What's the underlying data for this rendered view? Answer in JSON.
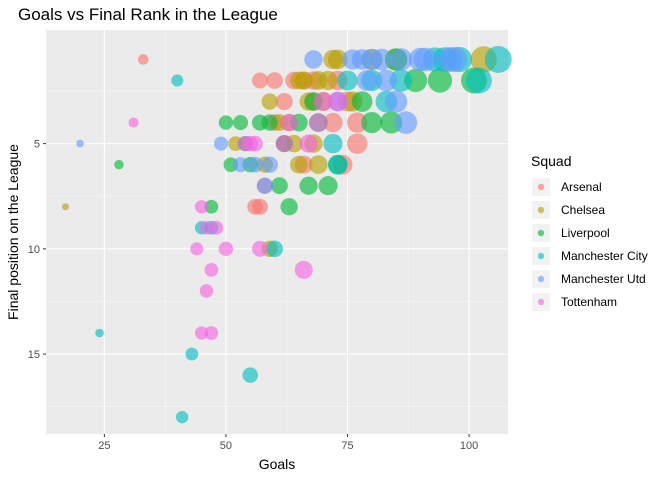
{
  "chart_data": {
    "type": "scatter",
    "title": "Goals vs Final Rank in the League",
    "xlabel": "Goals",
    "ylabel": "Final position on the League",
    "xlim": [
      13,
      108
    ],
    "ylim": [
      18.8,
      -0.4
    ],
    "y_reversed": true,
    "grid": true,
    "x_ticks": [
      25,
      50,
      75,
      100
    ],
    "y_ticks": [
      5,
      10,
      15
    ],
    "legend_position": "right",
    "legend_title": "Squad",
    "size_encodes": "x",
    "series": [
      {
        "name": "Arsenal",
        "color": "#F8766D",
        "points": [
          [
            33,
            1
          ],
          [
            57,
            2
          ],
          [
            60,
            2
          ],
          [
            62,
            3
          ],
          [
            64,
            2
          ],
          [
            66,
            2
          ],
          [
            68,
            3
          ],
          [
            73,
            2
          ],
          [
            75,
            3
          ],
          [
            77,
            4
          ],
          [
            72,
            4
          ],
          [
            77,
            5
          ],
          [
            74,
            6
          ],
          [
            62,
            5
          ],
          [
            58,
            7
          ],
          [
            56,
            8
          ],
          [
            57,
            8
          ],
          [
            66,
            6
          ],
          [
            60,
            4
          ],
          [
            68,
            2
          ]
        ]
      },
      {
        "name": "Chelsea",
        "color": "#B79F00",
        "points": [
          [
            17,
            8
          ],
          [
            52,
            5
          ],
          [
            58,
            6
          ],
          [
            59,
            10
          ],
          [
            61,
            4
          ],
          [
            63,
            4
          ],
          [
            64,
            5
          ],
          [
            65,
            6
          ],
          [
            66,
            2
          ],
          [
            67,
            3
          ],
          [
            68,
            5
          ],
          [
            69,
            6
          ],
          [
            70,
            3
          ],
          [
            71,
            2
          ],
          [
            72,
            1
          ],
          [
            73,
            1
          ],
          [
            76,
            3
          ],
          [
            80,
            1
          ],
          [
            85,
            1
          ],
          [
            103,
            1
          ],
          [
            59,
            3
          ],
          [
            65,
            2
          ],
          [
            69,
            2
          ]
        ]
      },
      {
        "name": "Liverpool",
        "color": "#00BA38",
        "points": [
          [
            28,
            6
          ],
          [
            47,
            8
          ],
          [
            50,
            4
          ],
          [
            51,
            6
          ],
          [
            53,
            4
          ],
          [
            54,
            5
          ],
          [
            55,
            6
          ],
          [
            57,
            4
          ],
          [
            59,
            4
          ],
          [
            61,
            7
          ],
          [
            62,
            5
          ],
          [
            63,
            8
          ],
          [
            65,
            4
          ],
          [
            67,
            7
          ],
          [
            69,
            4
          ],
          [
            71,
            7
          ],
          [
            73,
            6
          ],
          [
            78,
            3
          ],
          [
            80,
            4
          ],
          [
            84,
            4
          ],
          [
            85,
            1
          ],
          [
            89,
            2
          ],
          [
            94,
            2
          ],
          [
            101,
            2
          ],
          [
            68,
            3
          ]
        ]
      },
      {
        "name": "Manchester City",
        "color": "#00BFC4",
        "points": [
          [
            24,
            14
          ],
          [
            40,
            2
          ],
          [
            41,
            18
          ],
          [
            43,
            15
          ],
          [
            45,
            9
          ],
          [
            47,
            9
          ],
          [
            55,
            16
          ],
          [
            60,
            10
          ],
          [
            72,
            5
          ],
          [
            73,
            6
          ],
          [
            80,
            2
          ],
          [
            83,
            3
          ],
          [
            93,
            1
          ],
          [
            95,
            1
          ],
          [
            98,
            1
          ],
          [
            102,
            2
          ],
          [
            106,
            1
          ],
          [
            75,
            2
          ],
          [
            86,
            2
          ]
        ]
      },
      {
        "name": "Manchester Utd",
        "color": "#619CFF",
        "points": [
          [
            20,
            5
          ],
          [
            49,
            5
          ],
          [
            53,
            6
          ],
          [
            56,
            6
          ],
          [
            58,
            7
          ],
          [
            59,
            6
          ],
          [
            68,
            1
          ],
          [
            73,
            3
          ],
          [
            76,
            1
          ],
          [
            78,
            1
          ],
          [
            79,
            2
          ],
          [
            80,
            1
          ],
          [
            83,
            2
          ],
          [
            85,
            3
          ],
          [
            86,
            1
          ],
          [
            87,
            4
          ],
          [
            90,
            1
          ],
          [
            91,
            1
          ],
          [
            96,
            1
          ],
          [
            97,
            1
          ],
          [
            82,
            1
          ]
        ]
      },
      {
        "name": "Tottenham",
        "color": "#F564E3",
        "points": [
          [
            31,
            4
          ],
          [
            44,
            10
          ],
          [
            45,
            8
          ],
          [
            45,
            14
          ],
          [
            46,
            9
          ],
          [
            46,
            12
          ],
          [
            47,
            11
          ],
          [
            47,
            14
          ],
          [
            48,
            9
          ],
          [
            50,
            10
          ],
          [
            54,
            5
          ],
          [
            55,
            5
          ],
          [
            56,
            5
          ],
          [
            57,
            10
          ],
          [
            62,
            5
          ],
          [
            63,
            4
          ],
          [
            66,
            11
          ],
          [
            67,
            5
          ],
          [
            69,
            4
          ],
          [
            70,
            3
          ],
          [
            73,
            3
          ]
        ]
      }
    ]
  }
}
